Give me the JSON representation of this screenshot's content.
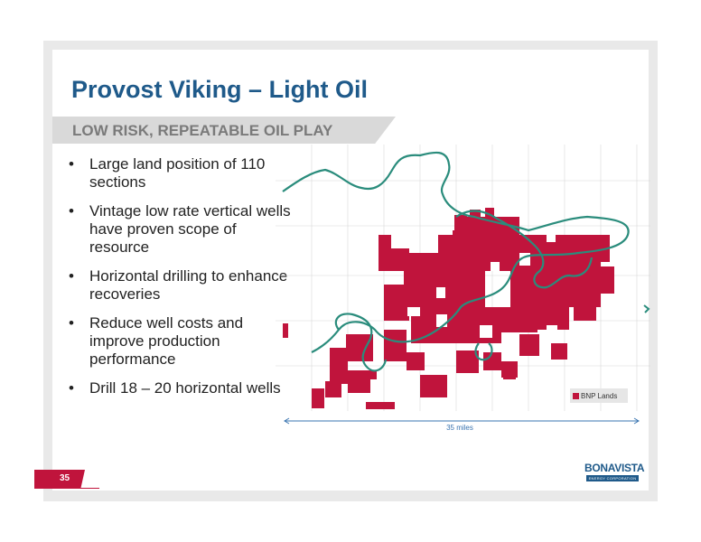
{
  "title": "Provost Viking – Light Oil",
  "subtitle": "LOW RISK, REPEATABLE OIL PLAY",
  "bullets": [
    "Large land position of 110 sections",
    "Vintage low rate vertical wells have proven scope of resource",
    "Horizontal drilling to enhance recoveries",
    "Reduce well costs and improve production performance",
    "Drill 18 – 20 horizontal wells"
  ],
  "map": {
    "legend_label": "BNP Lands",
    "scale_label": "35 miles",
    "land_color": "#c0143c",
    "boundary_color": "#2a8c7c"
  },
  "page_number": "35",
  "logo": {
    "name": "BONAVISTA",
    "tagline": "ENERGY CORPORATION"
  }
}
